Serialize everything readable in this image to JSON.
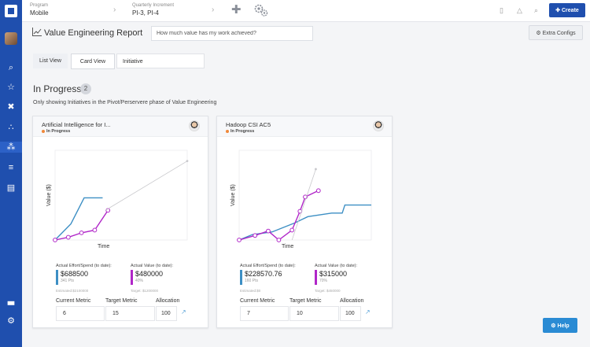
{
  "topbar": {
    "program_label": "Program",
    "program_value": "Mobile",
    "increment_label": "Quarterly Increment",
    "increment_value": "PI-3, PI-4",
    "create_label": "Create"
  },
  "header": {
    "title": "Value Engineering Report",
    "ask_placeholder": "How much value has my work achieved?",
    "extra_configs_label": "Extra Configs"
  },
  "tabs": {
    "list_view": "List View",
    "card_view": "Card View",
    "initiative": "Initiative"
  },
  "section": {
    "title": "In Progress",
    "count": "2",
    "note": "Only showing Initiatives in the Pivot/Perservere phase of Value Engineering"
  },
  "cards": [
    {
      "title": "Artificial Intelligence for I...",
      "status": "In Progress",
      "x_label": "Time",
      "y_label": "Value ($)",
      "effort_label": "Actual Effort/Spend (to date):",
      "effort_value": "$688500",
      "effort_sub": "341 Pts",
      "effort_est": "Estimated:$2100000",
      "value_label": "Actual Value (to date):",
      "value_value": "$480000",
      "value_sub": "40%",
      "value_target": "Target: $1200000",
      "current_metric_label": "Current Metric",
      "target_metric_label": "Target Metric",
      "allocation_label": "Allocation",
      "current_metric": "6",
      "target_metric": "15",
      "allocation": "100",
      "chart_data": {
        "type": "line",
        "xlabel": "Time",
        "ylabel": "Value ($)",
        "series": [
          {
            "color": "#3d8fc4",
            "points": [
              [
                0,
                0
              ],
              [
                0.12,
                0.18
              ],
              [
                0.22,
                0.47
              ],
              [
                0.36,
                0.47
              ]
            ]
          },
          {
            "color": "#b026c8",
            "points": [
              [
                0,
                0
              ],
              [
                0.1,
                0.03
              ],
              [
                0.2,
                0.08
              ],
              [
                0.3,
                0.11
              ],
              [
                0.4,
                0.33
              ]
            ]
          },
          {
            "color": "#c8c8cc",
            "points": [
              [
                0.38,
                0.33
              ],
              [
                1.0,
                0.88
              ]
            ]
          }
        ]
      }
    },
    {
      "title": "Hadoop CSI AC5",
      "status": "In Progress",
      "x_label": "Time",
      "y_label": "Value ($)",
      "effort_label": "Actual Effort/Spend (to date):",
      "effort_value": "$228570.76",
      "effort_sub": "160 Pts",
      "effort_est": "Estimated:$0",
      "value_label": "Actual Value (to date):",
      "value_value": "$315000",
      "value_sub": "70%",
      "value_target": "Target: $450000",
      "current_metric_label": "Current Metric",
      "target_metric_label": "Target Metric",
      "allocation_label": "Allocation",
      "current_metric": "7",
      "target_metric": "10",
      "allocation": "100",
      "chart_data": {
        "type": "line",
        "xlabel": "Time",
        "ylabel": "Value ($)",
        "series": [
          {
            "color": "#3d8fc4",
            "points": [
              [
                0,
                0
              ],
              [
                0.1,
                0.06
              ],
              [
                0.25,
                0.09
              ],
              [
                0.42,
                0.19
              ],
              [
                0.52,
                0.26
              ],
              [
                0.7,
                0.3
              ],
              [
                0.78,
                0.3
              ],
              [
                0.8,
                0.39
              ],
              [
                1.0,
                0.39
              ]
            ]
          },
          {
            "color": "#b026c8",
            "points": [
              [
                0,
                0
              ],
              [
                0.12,
                0.05
              ],
              [
                0.22,
                0.1
              ],
              [
                0.3,
                0.0
              ],
              [
                0.4,
                0.11
              ],
              [
                0.46,
                0.32
              ],
              [
                0.5,
                0.48
              ],
              [
                0.6,
                0.55
              ]
            ]
          },
          {
            "color": "#c8c8cc",
            "points": [
              [
                0.4,
                0.0
              ],
              [
                0.58,
                0.79
              ]
            ]
          }
        ]
      }
    }
  ],
  "help_label": "Help"
}
